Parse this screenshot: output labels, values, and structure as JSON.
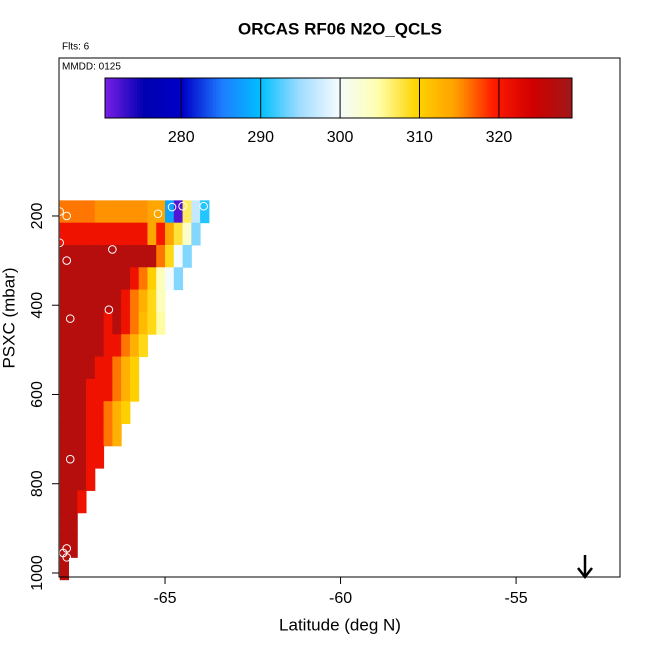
{
  "chart_data": {
    "type": "heatmap",
    "title": "ORCAS RF06 N2O_QCLS",
    "notes": [
      "Flts: 6",
      "MMDD: 0125"
    ],
    "xlabel": "Latitude (deg N)",
    "ylabel": "PSXC (mbar)",
    "xlim": [
      -68.02,
      -52.04
    ],
    "xticks": [
      -65,
      -60,
      -55
    ],
    "ylim": [
      1009,
      -154
    ],
    "yticks": [
      200,
      400,
      600,
      800,
      1000
    ],
    "x": [
      -67.875,
      -67.625,
      -67.375,
      -67.125,
      -66.875,
      -66.625,
      -66.375,
      -66.125,
      -65.875,
      -65.625,
      -65.375,
      -65.125,
      -64.875,
      -64.625,
      -64.375,
      -64.125,
      -63.875
    ],
    "y": [
      190,
      240,
      290,
      340,
      390,
      440,
      490,
      540,
      590,
      640,
      690,
      740,
      790,
      840,
      890,
      940,
      990
    ],
    "z": [
      [
        316,
        316,
        316,
        316,
        315,
        315,
        315,
        315,
        315,
        315,
        314,
        314,
        288,
        272,
        307,
        297,
        291
      ],
      [
        321,
        321,
        321,
        321,
        321,
        321,
        321,
        321,
        321,
        321,
        314,
        320,
        314,
        308,
        303,
        294,
        null
      ],
      [
        327,
        327,
        327,
        327,
        327,
        327,
        327,
        327,
        327,
        327,
        327,
        316,
        309,
        300,
        294,
        null,
        null
      ],
      [
        327,
        327,
        327,
        327,
        327,
        327,
        327,
        327,
        321,
        316,
        310,
        304,
        300,
        294,
        null,
        null,
        null
      ],
      [
        327,
        327,
        327,
        327,
        327,
        327,
        327,
        321,
        316,
        313,
        309,
        304,
        null,
        null,
        null,
        null,
        null
      ],
      [
        327,
        327,
        327,
        327,
        327,
        321,
        327,
        321,
        316,
        312,
        309,
        305,
        null,
        null,
        null,
        null,
        null
      ],
      [
        327,
        327,
        327,
        327,
        327,
        321,
        321,
        316,
        313,
        309,
        null,
        null,
        null,
        null,
        null,
        null,
        null
      ],
      [
        327,
        327,
        327,
        327,
        321,
        321,
        316,
        313,
        310,
        null,
        null,
        null,
        null,
        null,
        null,
        null,
        null
      ],
      [
        327,
        327,
        327,
        321,
        321,
        321,
        316,
        313,
        310,
        null,
        null,
        null,
        null,
        null,
        null,
        null,
        null
      ],
      [
        327,
        327,
        327,
        321,
        321,
        316,
        313,
        310,
        null,
        null,
        null,
        null,
        null,
        null,
        null,
        null,
        null
      ],
      [
        327,
        327,
        327,
        321,
        321,
        316,
        313,
        null,
        null,
        null,
        null,
        null,
        null,
        null,
        null,
        null,
        null
      ],
      [
        327,
        327,
        327,
        321,
        321,
        null,
        null,
        null,
        null,
        null,
        null,
        null,
        null,
        null,
        null,
        null,
        null
      ],
      [
        327,
        327,
        327,
        321,
        null,
        null,
        null,
        null,
        null,
        null,
        null,
        null,
        null,
        null,
        null,
        null,
        null
      ],
      [
        327,
        327,
        321,
        null,
        null,
        null,
        null,
        null,
        null,
        null,
        null,
        null,
        null,
        null,
        null,
        null,
        null
      ],
      [
        327,
        327,
        null,
        null,
        null,
        null,
        null,
        null,
        null,
        null,
        null,
        null,
        null,
        null,
        null,
        null,
        null
      ],
      [
        327,
        327,
        null,
        null,
        null,
        null,
        null,
        null,
        null,
        null,
        null,
        null,
        null,
        null,
        null,
        null,
        null
      ],
      [
        327,
        null,
        null,
        null,
        null,
        null,
        null,
        null,
        null,
        null,
        null,
        null,
        null,
        null,
        null,
        null,
        null
      ]
    ],
    "clim": [
      270.4,
      329.2
    ],
    "colorbar_ticks": [
      280,
      290,
      300,
      310,
      320
    ],
    "colormap": [
      "#7a1fe6",
      "#0000b0",
      "#0000c8",
      "#1e7cff",
      "#00bfff",
      "#a0dcff",
      "#f4fbff",
      "#ffffb0",
      "#ffd400",
      "#ffa000",
      "#ff1a00",
      "#d00000",
      "#a01818"
    ],
    "points": {
      "x": [
        -68.0,
        -67.8,
        -65.2,
        -64.8,
        -64.5,
        -63.9,
        -68.0,
        -66.5,
        -67.8,
        -66.6,
        -67.7,
        -67.7,
        -67.8,
        -67.9,
        -67.8
      ],
      "y": [
        190,
        200,
        195,
        180,
        178,
        178,
        260,
        275,
        300,
        410,
        430,
        745,
        945,
        955,
        965
      ]
    }
  }
}
